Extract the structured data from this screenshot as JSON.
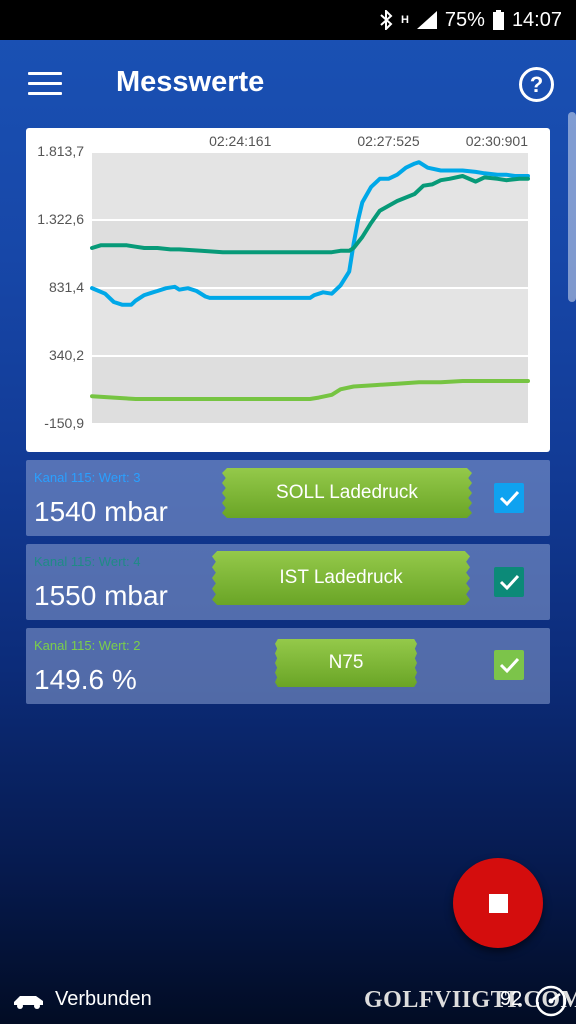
{
  "status_bar": {
    "battery": "75%",
    "time": "14:07",
    "network": "H"
  },
  "app_bar": {
    "title": "Messwerte",
    "help": "?"
  },
  "chart_data": {
    "type": "line",
    "y_ticks": [
      "1.813,7",
      "1.322,6",
      "831,4",
      "340,2",
      "-150,9"
    ],
    "x_ticks": [
      "02:24:161",
      "02:27:525",
      "02:30:901"
    ],
    "ylim": [
      -150.9,
      1813.7
    ],
    "grid": true,
    "series": [
      {
        "color": "#00a8e8",
        "x": [
          0,
          0.03,
          0.05,
          0.07,
          0.09,
          0.1,
          0.12,
          0.14,
          0.15,
          0.17,
          0.19,
          0.2,
          0.22,
          0.24,
          0.26,
          0.27,
          0.28,
          0.3,
          0.35,
          0.4,
          0.45,
          0.5,
          0.51,
          0.53,
          0.55,
          0.57,
          0.59,
          0.6,
          0.61,
          0.62,
          0.64,
          0.66,
          0.68,
          0.7,
          0.72,
          0.74,
          0.75,
          0.77,
          0.8,
          0.85,
          0.88,
          0.9,
          0.93,
          0.95,
          0.97,
          1.0
        ],
        "y": [
          831,
          790,
          730,
          710,
          710,
          740,
          780,
          800,
          810,
          830,
          840,
          820,
          830,
          810,
          770,
          760,
          760,
          760,
          760,
          760,
          760,
          760,
          780,
          800,
          790,
          850,
          950,
          1150,
          1320,
          1450,
          1560,
          1620,
          1620,
          1650,
          1700,
          1730,
          1740,
          1700,
          1680,
          1680,
          1670,
          1660,
          1650,
          1650,
          1640,
          1640
        ]
      },
      {
        "color": "#079a78",
        "x": [
          0,
          0.02,
          0.05,
          0.08,
          0.1,
          0.12,
          0.15,
          0.18,
          0.2,
          0.25,
          0.3,
          0.35,
          0.4,
          0.45,
          0.5,
          0.55,
          0.57,
          0.59,
          0.6,
          0.62,
          0.64,
          0.66,
          0.7,
          0.74,
          0.76,
          0.78,
          0.8,
          0.82,
          0.85,
          0.88,
          0.9,
          0.93,
          0.95,
          0.98,
          1.0
        ],
        "y": [
          1120,
          1140,
          1140,
          1140,
          1130,
          1120,
          1120,
          1110,
          1110,
          1100,
          1090,
          1090,
          1090,
          1090,
          1090,
          1090,
          1100,
          1100,
          1120,
          1200,
          1300,
          1390,
          1460,
          1510,
          1570,
          1580,
          1610,
          1620,
          1640,
          1600,
          1630,
          1620,
          1610,
          1620,
          1620
        ]
      },
      {
        "color": "#76c442",
        "x": [
          0,
          0.05,
          0.1,
          0.15,
          0.2,
          0.3,
          0.4,
          0.45,
          0.5,
          0.52,
          0.55,
          0.57,
          0.6,
          0.65,
          0.7,
          0.75,
          0.8,
          0.85,
          0.9,
          0.95,
          1.0
        ],
        "y": [
          50,
          40,
          30,
          30,
          30,
          30,
          30,
          30,
          30,
          40,
          60,
          100,
          120,
          130,
          140,
          150,
          150,
          160,
          160,
          160,
          160
        ]
      }
    ]
  },
  "channels": [
    {
      "label": "Kanal 115: Wert: 3",
      "value": "1540 mbar",
      "name": "SOLL Ladedruck",
      "label_color": "#2aa0ff",
      "check_color": "#0fa2f0",
      "checked": true
    },
    {
      "label": "Kanal 115: Wert: 4",
      "value": "1550 mbar",
      "name": "IST Ladedruck",
      "label_color": "#1f8b86",
      "check_color": "#0c8a78",
      "checked": true
    },
    {
      "label": "Kanal 115: Wert: 2",
      "value": "149.6 %",
      "name": "N75",
      "label_color": "#7bcf4a",
      "check_color": "#7cc44a",
      "checked": true
    }
  ],
  "bottom": {
    "connection": "Verbunden",
    "brand": "GOLFVIIGTI.COM",
    "counter": "92"
  }
}
